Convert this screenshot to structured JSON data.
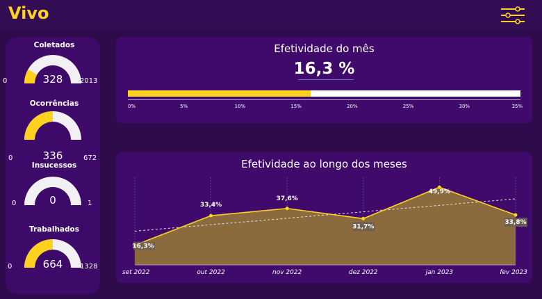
{
  "header": {
    "brand": "Vivo",
    "filter_icon": "sliders-icon"
  },
  "gauges": [
    {
      "title": "Coletados",
      "value": 328,
      "value_label": "328",
      "min": "0",
      "max": "2013",
      "max_value": 2013
    },
    {
      "title": "Ocorrências",
      "value": 336,
      "value_label": "336",
      "min": "0",
      "max": "672",
      "max_value": 672
    },
    {
      "title": "Insucessos",
      "value": 0,
      "value_label": "0",
      "min": "0",
      "max": "1",
      "max_value": 1
    },
    {
      "title": "Trabalhados",
      "value": 664,
      "value_label": "664",
      "min": "0",
      "max": "1328",
      "max_value": 1328
    }
  ],
  "kpi": {
    "title": "Efetividade do mês",
    "value_label": "16,3 %",
    "value": 16.3,
    "max": 35,
    "ticks": [
      "0%",
      "5%",
      "10%",
      "15%",
      "20%",
      "25%",
      "30%",
      "35%"
    ]
  },
  "colors": {
    "accent": "#ffd21f",
    "background": "#2e0c4c",
    "card": "#3f0a6c",
    "area": "#8b6a3e"
  },
  "chart_data": {
    "type": "area",
    "title": "Efetividade ao longo dos meses",
    "categories": [
      "set 2022",
      "out 2022",
      "nov 2022",
      "dez 2022",
      "jan 2023",
      "fev 2023"
    ],
    "series": [
      {
        "values": [
          16.3,
          33.4,
          37.6,
          31.7,
          49.9,
          33.8
        ],
        "labels": [
          "16,3%",
          "33,4%",
          "37,6%",
          "31,7%",
          "49,9%",
          "33,8%"
        ]
      }
    ],
    "trendline": true,
    "grid": "vertical dotted"
  }
}
